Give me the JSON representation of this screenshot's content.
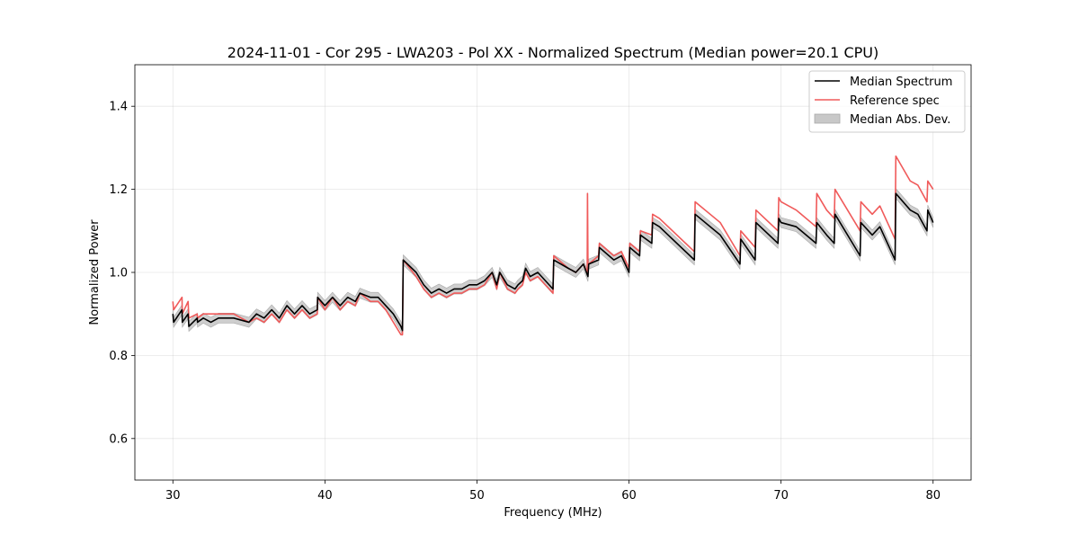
{
  "chart_data": {
    "type": "line",
    "title": "2024-11-01 - Cor 295 - LWA203 - Pol XX - Normalized Spectrum (Median power=20.1 CPU)",
    "xlabel": "Frequency (MHz)",
    "ylabel": "Normalized Power",
    "xlim": [
      27.5,
      82.5
    ],
    "ylim": [
      0.5,
      1.5
    ],
    "xticks": [
      30,
      40,
      50,
      60,
      70,
      80
    ],
    "yticks": [
      0.6,
      0.8,
      1.0,
      1.2,
      1.4
    ],
    "xtick_labels": [
      "30",
      "40",
      "50",
      "60",
      "70",
      "80"
    ],
    "ytick_labels": [
      "0.6",
      "0.8",
      "1.0",
      "1.2",
      "1.4"
    ],
    "grid": true,
    "legend_position": "top-right",
    "series": [
      {
        "name": "Median Spectrum",
        "color": "#000000",
        "x": [
          30.0,
          30.05,
          30.6,
          30.62,
          31.0,
          31.05,
          31.6,
          31.62,
          32.0,
          32.5,
          33.0,
          34.0,
          35.0,
          35.5,
          36.0,
          36.5,
          37.0,
          37.5,
          38.0,
          38.5,
          39.0,
          39.5,
          39.52,
          40.0,
          40.5,
          41.0,
          41.5,
          42.0,
          42.3,
          43.0,
          43.5,
          44.0,
          44.5,
          45.0,
          45.1,
          45.15,
          46.0,
          46.5,
          47.0,
          47.5,
          48.0,
          48.5,
          49.0,
          49.5,
          50.0,
          50.5,
          51.0,
          51.3,
          51.5,
          52.0,
          52.5,
          52.7,
          53.0,
          53.2,
          53.5,
          54.0,
          54.5,
          55.0,
          55.05,
          56.0,
          56.5,
          57.0,
          57.3,
          57.35,
          58.0,
          58.05,
          59.0,
          59.5,
          60.0,
          60.05,
          60.7,
          60.75,
          61.5,
          61.55,
          62.0,
          64.3,
          64.35,
          66.0,
          67.3,
          67.35,
          68.3,
          68.35,
          69.8,
          69.85,
          70.0,
          71.0,
          72.3,
          72.35,
          73.0,
          73.5,
          73.55,
          75.2,
          75.25,
          76.0,
          76.5,
          77.5,
          77.55,
          78.5,
          79.0,
          79.6,
          79.65,
          80.0
        ],
        "values": [
          0.9,
          0.88,
          0.91,
          0.88,
          0.9,
          0.87,
          0.89,
          0.88,
          0.89,
          0.88,
          0.89,
          0.89,
          0.88,
          0.9,
          0.89,
          0.91,
          0.89,
          0.92,
          0.9,
          0.92,
          0.9,
          0.91,
          0.94,
          0.92,
          0.94,
          0.92,
          0.94,
          0.93,
          0.95,
          0.94,
          0.94,
          0.92,
          0.9,
          0.87,
          0.86,
          1.03,
          1.0,
          0.97,
          0.95,
          0.96,
          0.95,
          0.96,
          0.96,
          0.97,
          0.97,
          0.98,
          1.0,
          0.97,
          1.0,
          0.97,
          0.96,
          0.97,
          0.98,
          1.01,
          0.99,
          1.0,
          0.98,
          0.96,
          1.03,
          1.01,
          1.0,
          1.02,
          0.99,
          1.02,
          1.03,
          1.06,
          1.03,
          1.04,
          1.0,
          1.06,
          1.04,
          1.09,
          1.07,
          1.12,
          1.11,
          1.03,
          1.14,
          1.09,
          1.02,
          1.08,
          1.03,
          1.12,
          1.07,
          1.13,
          1.12,
          1.11,
          1.07,
          1.12,
          1.09,
          1.07,
          1.14,
          1.04,
          1.12,
          1.09,
          1.11,
          1.03,
          1.19,
          1.15,
          1.14,
          1.1,
          1.15,
          1.12
        ]
      },
      {
        "name": "Reference spec",
        "color": "#f05a5a",
        "x": [
          30.0,
          30.05,
          30.6,
          30.62,
          31.0,
          31.05,
          31.6,
          31.62,
          32.0,
          32.5,
          33.0,
          34.0,
          35.0,
          35.5,
          36.0,
          36.5,
          37.0,
          37.5,
          38.0,
          38.5,
          39.0,
          39.5,
          39.52,
          40.0,
          40.5,
          41.0,
          41.5,
          42.0,
          42.3,
          43.0,
          43.5,
          44.0,
          44.5,
          45.0,
          45.1,
          45.15,
          46.0,
          46.5,
          47.0,
          47.5,
          48.0,
          48.5,
          49.0,
          49.5,
          50.0,
          50.5,
          51.0,
          51.3,
          51.5,
          52.0,
          52.5,
          52.7,
          53.0,
          53.2,
          53.5,
          54.0,
          54.5,
          55.0,
          55.05,
          56.0,
          56.5,
          57.0,
          57.25,
          57.27,
          57.3,
          57.35,
          58.0,
          58.05,
          59.0,
          59.5,
          60.0,
          60.05,
          60.7,
          60.75,
          61.5,
          61.55,
          62.0,
          64.3,
          64.35,
          66.0,
          67.3,
          67.35,
          68.3,
          68.35,
          69.8,
          69.85,
          70.0,
          71.0,
          72.3,
          72.35,
          73.0,
          73.5,
          73.55,
          75.2,
          75.25,
          76.0,
          76.5,
          77.5,
          77.55,
          78.5,
          79.0,
          79.6,
          79.65,
          80.0
        ],
        "values": [
          0.93,
          0.91,
          0.94,
          0.9,
          0.93,
          0.89,
          0.9,
          0.89,
          0.9,
          0.9,
          0.9,
          0.9,
          0.88,
          0.89,
          0.88,
          0.9,
          0.88,
          0.91,
          0.89,
          0.91,
          0.89,
          0.9,
          0.94,
          0.91,
          0.94,
          0.91,
          0.93,
          0.92,
          0.95,
          0.93,
          0.93,
          0.91,
          0.88,
          0.85,
          0.85,
          1.03,
          0.99,
          0.96,
          0.94,
          0.95,
          0.94,
          0.95,
          0.95,
          0.96,
          0.96,
          0.97,
          1.0,
          0.96,
          1.0,
          0.96,
          0.95,
          0.96,
          0.97,
          1.0,
          0.98,
          0.99,
          0.97,
          0.95,
          1.04,
          1.01,
          1.0,
          1.02,
          1.0,
          1.19,
          1.02,
          1.02,
          1.04,
          1.07,
          1.04,
          1.05,
          1.01,
          1.07,
          1.05,
          1.1,
          1.09,
          1.14,
          1.13,
          1.05,
          1.17,
          1.12,
          1.04,
          1.1,
          1.06,
          1.15,
          1.1,
          1.18,
          1.17,
          1.15,
          1.11,
          1.19,
          1.15,
          1.13,
          1.2,
          1.1,
          1.17,
          1.14,
          1.16,
          1.08,
          1.28,
          1.22,
          1.21,
          1.17,
          1.22,
          1.2
        ]
      }
    ],
    "band": {
      "name": "Median Abs. Dev.",
      "color": "#bdbdbd",
      "half_width": 0.012
    }
  }
}
